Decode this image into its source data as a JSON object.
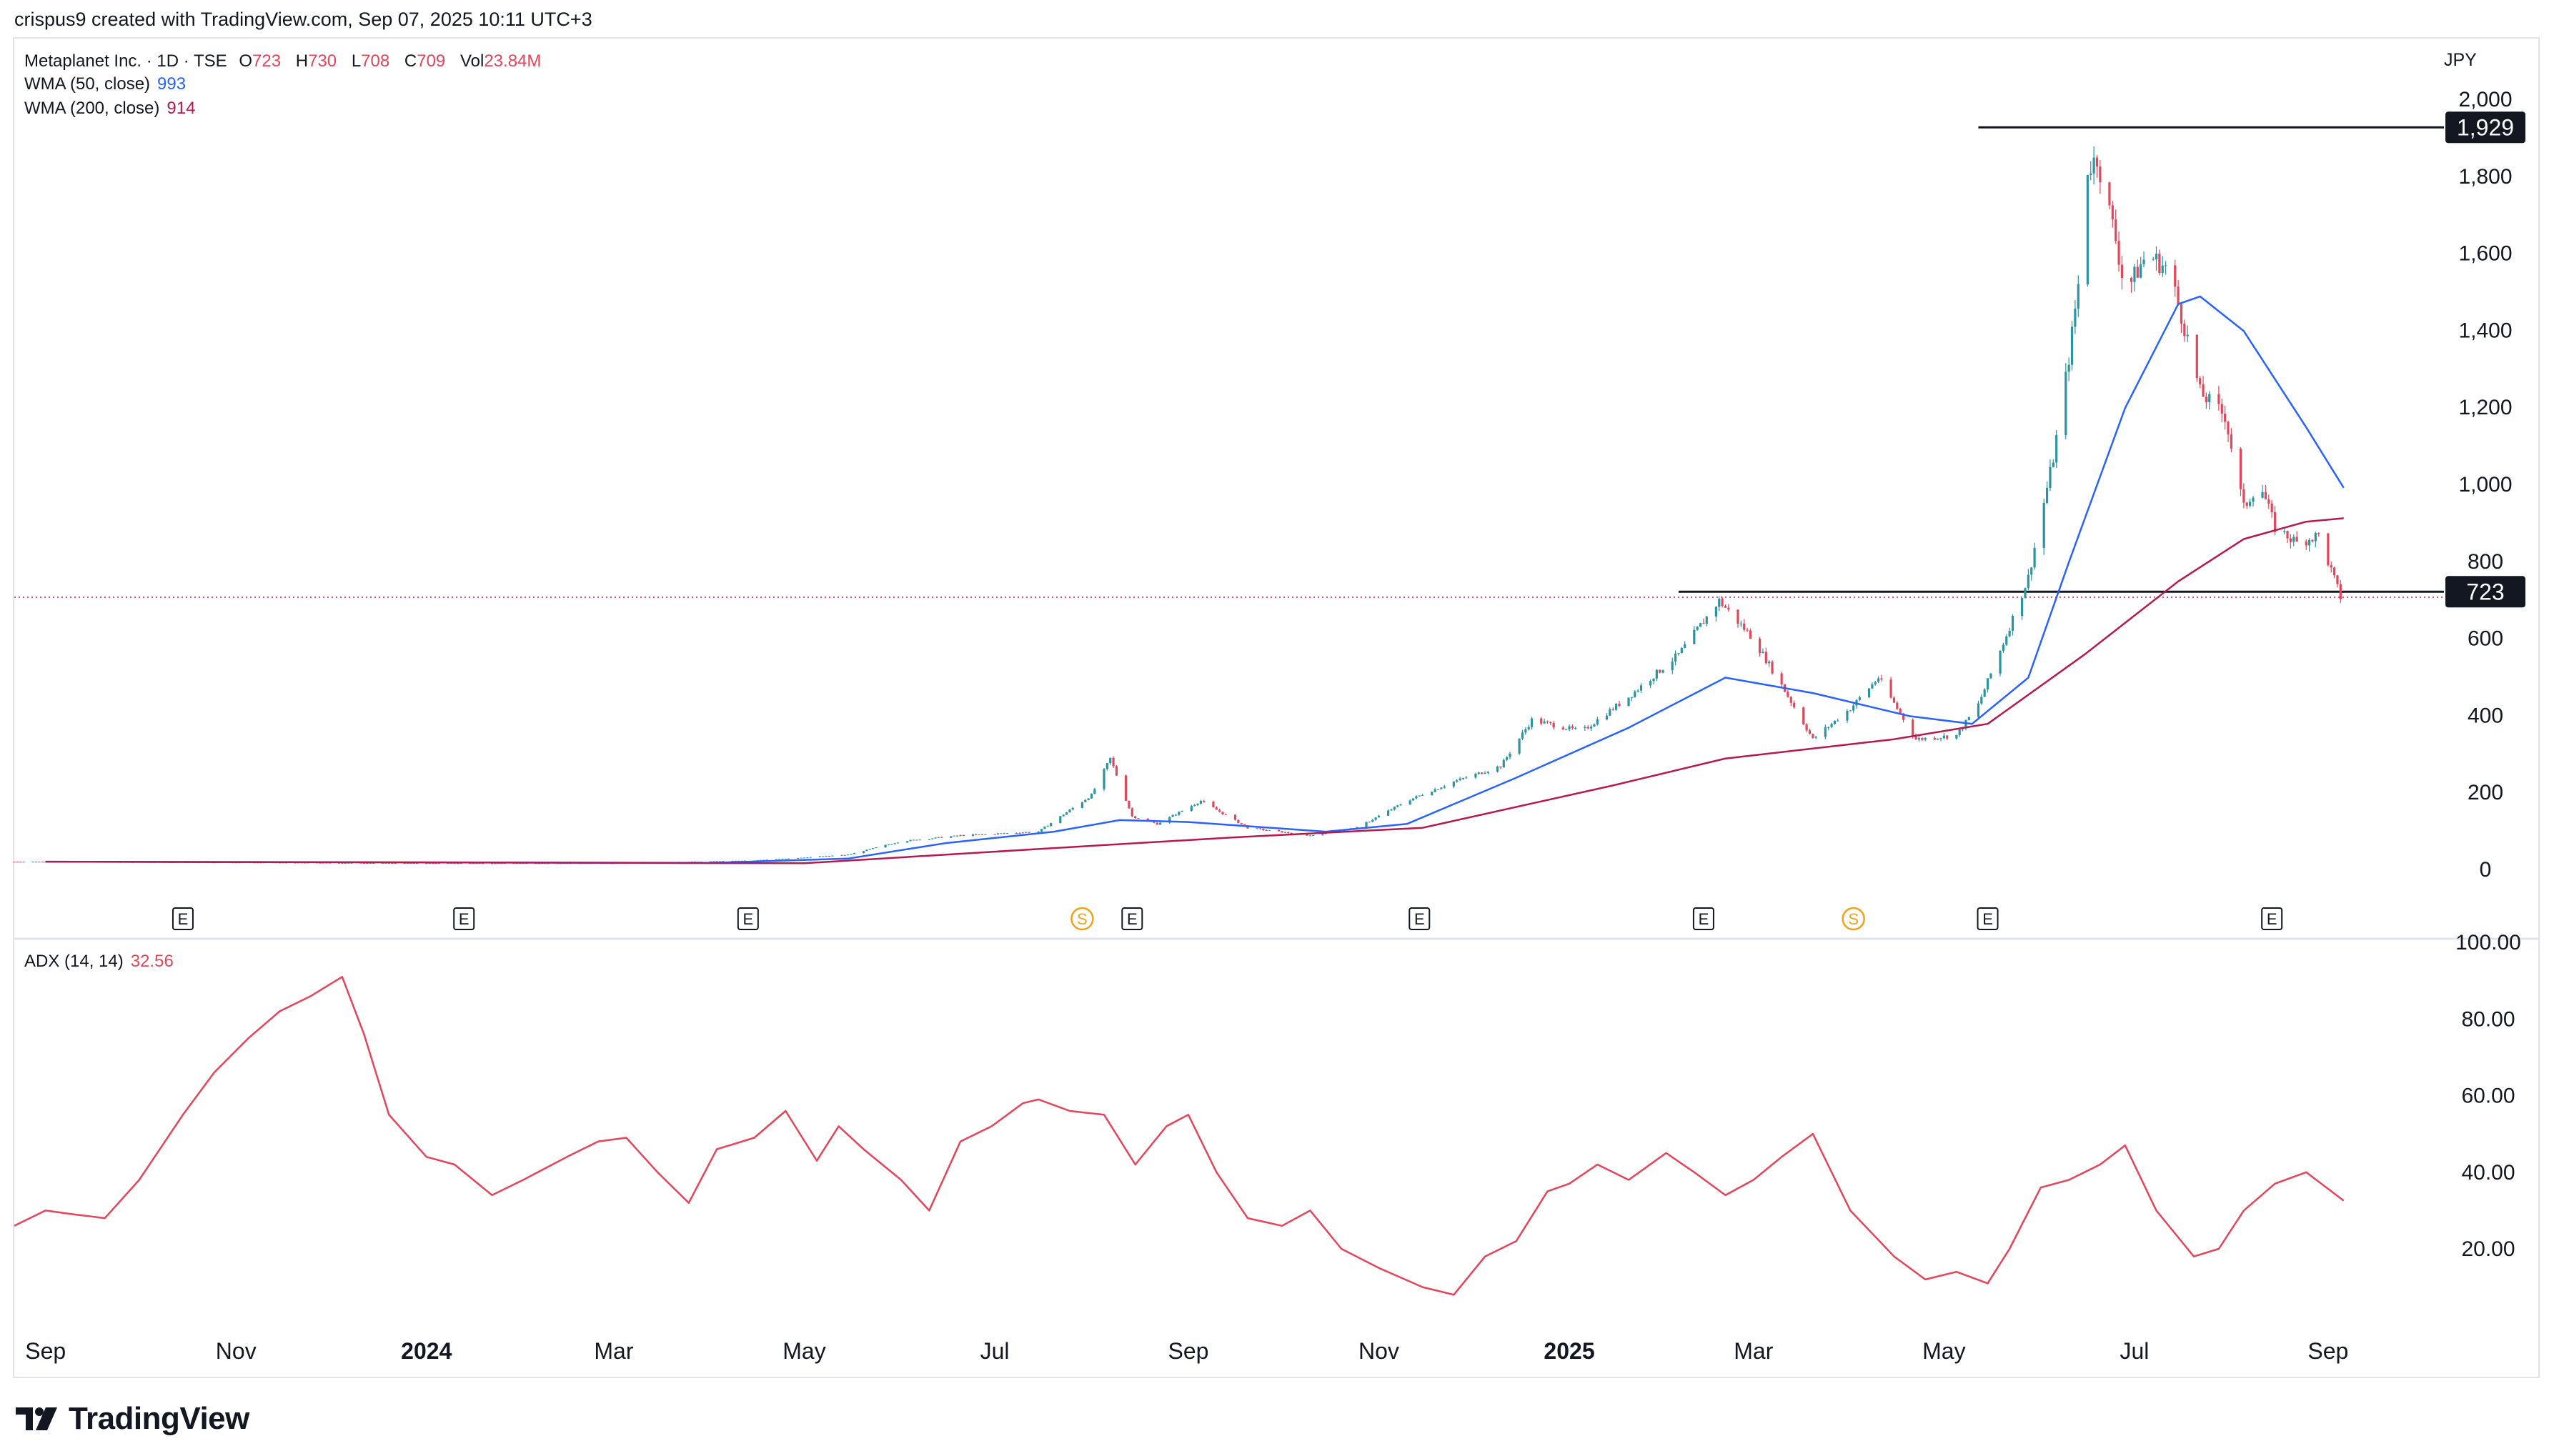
{
  "header": {
    "credit": "crispus9 created with TradingView.com, Sep 07, 2025 10:11 UTC+3"
  },
  "legend": {
    "symbol": "Metaplanet Inc. · 1D · TSE",
    "o_label": "O",
    "o_value": "723",
    "h_label": "H",
    "h_value": "730",
    "l_label": "L",
    "l_value": "708",
    "c_label": "C",
    "c_value": "709",
    "vol_label": "Vol",
    "vol_value": "23.84M",
    "wma50_label": "WMA (50, close)",
    "wma50_value": "993",
    "wma200_label": "WMA (200, close)",
    "wma200_value": "914",
    "adx_label": "ADX (14, 14)",
    "adx_value": "32.56"
  },
  "currency": "JPY",
  "footer": {
    "brand": "TradingView"
  },
  "colors": {
    "up": "#2a95a1",
    "down": "#e5455a",
    "wma50": "#2962ff",
    "wma200": "#b5194f",
    "adx": "#e5455a",
    "grid": "#eef0f4",
    "axis_text": "#131722"
  },
  "chart_data": [
    {
      "type": "candlestick",
      "title": "Metaplanet Inc. · 1D · TSE",
      "y_axis": {
        "unit": "JPY",
        "ticks": [
          0,
          200,
          400,
          600,
          800,
          1000,
          1200,
          1400,
          1600,
          1800,
          2000
        ],
        "ylim": [
          -30,
          2060
        ]
      },
      "x_axis": {
        "ticks": [
          "Sep",
          "Nov",
          "2024",
          "Mar",
          "May",
          "Jul",
          "Sep",
          "Nov",
          "2025",
          "Mar",
          "May",
          "Jul",
          "Sep"
        ],
        "bold_ticks": [
          "2024",
          "2025"
        ],
        "range": [
          "2023-08-22",
          "2025-10-31"
        ]
      },
      "series": [
        {
          "name": "price",
          "points": [
            {
              "date": "2023-09-01",
              "close": 22
            },
            {
              "date": "2023-11-01",
              "close": 20
            },
            {
              "date": "2024-01-01",
              "close": 18
            },
            {
              "date": "2024-03-01",
              "close": 18
            },
            {
              "date": "2024-04-15",
              "close": 25
            },
            {
              "date": "2024-05-15",
              "close": 40
            },
            {
              "date": "2024-06-01",
              "close": 75
            },
            {
              "date": "2024-06-20",
              "close": 90
            },
            {
              "date": "2024-07-15",
              "close": 100
            },
            {
              "date": "2024-08-01",
              "close": 195
            },
            {
              "date": "2024-08-07",
              "close": 290
            },
            {
              "date": "2024-08-14",
              "close": 140
            },
            {
              "date": "2024-08-22",
              "close": 120
            },
            {
              "date": "2024-09-05",
              "close": 180
            },
            {
              "date": "2024-09-20",
              "close": 110
            },
            {
              "date": "2024-10-10",
              "close": 90
            },
            {
              "date": "2024-10-25",
              "close": 110
            },
            {
              "date": "2024-11-10",
              "close": 180
            },
            {
              "date": "2024-11-25",
              "close": 230
            },
            {
              "date": "2024-12-10",
              "close": 270
            },
            {
              "date": "2024-12-20",
              "close": 390
            },
            {
              "date": "2025-01-05",
              "close": 360
            },
            {
              "date": "2025-01-20",
              "close": 450
            },
            {
              "date": "2025-02-05",
              "close": 560
            },
            {
              "date": "2025-02-18",
              "close": 700
            },
            {
              "date": "2025-03-01",
              "close": 600
            },
            {
              "date": "2025-03-10",
              "close": 480
            },
            {
              "date": "2025-03-20",
              "close": 340
            },
            {
              "date": "2025-04-01",
              "close": 420
            },
            {
              "date": "2025-04-10",
              "close": 500
            },
            {
              "date": "2025-04-22",
              "close": 340
            },
            {
              "date": "2025-05-05",
              "close": 350
            },
            {
              "date": "2025-05-12",
              "close": 430
            },
            {
              "date": "2025-05-20",
              "close": 590
            },
            {
              "date": "2025-05-28",
              "close": 760
            },
            {
              "date": "2025-06-05",
              "close": 1070
            },
            {
              "date": "2025-06-10",
              "close": 1330
            },
            {
              "date": "2025-06-13",
              "close": 1520
            },
            {
              "date": "2025-06-16",
              "close": 1820
            },
            {
              "date": "2025-06-19",
              "close": 1850
            },
            {
              "date": "2025-06-25",
              "close": 1640
            },
            {
              "date": "2025-06-28",
              "close": 1500
            },
            {
              "date": "2025-07-05",
              "close": 1600
            },
            {
              "date": "2025-07-12",
              "close": 1560
            },
            {
              "date": "2025-07-18",
              "close": 1380
            },
            {
              "date": "2025-07-22",
              "close": 1240
            },
            {
              "date": "2025-07-30",
              "close": 1180
            },
            {
              "date": "2025-08-05",
              "close": 940
            },
            {
              "date": "2025-08-10",
              "close": 1010
            },
            {
              "date": "2025-08-15",
              "close": 890
            },
            {
              "date": "2025-08-22",
              "close": 850
            },
            {
              "date": "2025-08-29",
              "close": 870
            },
            {
              "date": "2025-09-05",
              "close": 709
            }
          ]
        },
        {
          "name": "WMA (50, close)",
          "points": [
            {
              "date": "2023-09-01",
              "value": 22
            },
            {
              "date": "2024-04-01",
              "value": 19
            },
            {
              "date": "2024-05-15",
              "value": 30
            },
            {
              "date": "2024-06-15",
              "value": 70
            },
            {
              "date": "2024-07-20",
              "value": 100
            },
            {
              "date": "2024-08-10",
              "value": 130
            },
            {
              "date": "2024-09-01",
              "value": 125
            },
            {
              "date": "2024-10-15",
              "value": 100
            },
            {
              "date": "2024-11-10",
              "value": 120
            },
            {
              "date": "2024-12-15",
              "value": 240
            },
            {
              "date": "2025-01-20",
              "value": 370
            },
            {
              "date": "2025-02-20",
              "value": 500
            },
            {
              "date": "2025-03-20",
              "value": 460
            },
            {
              "date": "2025-04-20",
              "value": 400
            },
            {
              "date": "2025-05-10",
              "value": 380
            },
            {
              "date": "2025-05-28",
              "value": 500
            },
            {
              "date": "2025-06-10",
              "value": 800
            },
            {
              "date": "2025-06-28",
              "value": 1200
            },
            {
              "date": "2025-07-15",
              "value": 1470
            },
            {
              "date": "2025-07-22",
              "value": 1490
            },
            {
              "date": "2025-08-05",
              "value": 1400
            },
            {
              "date": "2025-08-25",
              "value": 1150
            },
            {
              "date": "2025-09-06",
              "value": 993
            }
          ]
        },
        {
          "name": "WMA (200, close)",
          "points": [
            {
              "date": "2023-09-01",
              "value": 22
            },
            {
              "date": "2024-05-01",
              "value": 18
            },
            {
              "date": "2024-07-15",
              "value": 55
            },
            {
              "date": "2024-09-15",
              "value": 85
            },
            {
              "date": "2024-11-15",
              "value": 110
            },
            {
              "date": "2025-01-15",
              "value": 220
            },
            {
              "date": "2025-02-20",
              "value": 290
            },
            {
              "date": "2025-04-15",
              "value": 340
            },
            {
              "date": "2025-05-15",
              "value": 380
            },
            {
              "date": "2025-06-15",
              "value": 560
            },
            {
              "date": "2025-07-15",
              "value": 750
            },
            {
              "date": "2025-08-05",
              "value": 860
            },
            {
              "date": "2025-08-25",
              "value": 905
            },
            {
              "date": "2025-09-06",
              "value": 914
            }
          ]
        }
      ],
      "horizontal_lines": [
        {
          "value": 1929,
          "label": "1,929",
          "from": "2025-05-12"
        },
        {
          "value": 723,
          "label": "723",
          "from": "2025-02-05"
        }
      ],
      "current_price_line": 709,
      "earnings_markers": [
        {
          "date": "2023-10-15",
          "label": "E"
        },
        {
          "date": "2024-01-13",
          "label": "E"
        },
        {
          "date": "2024-04-13",
          "label": "E"
        },
        {
          "date": "2024-07-29",
          "label": "S"
        },
        {
          "date": "2024-08-14",
          "label": "E"
        },
        {
          "date": "2024-11-14",
          "label": "E"
        },
        {
          "date": "2025-02-13",
          "label": "E"
        },
        {
          "date": "2025-04-02",
          "label": "S"
        },
        {
          "date": "2025-05-15",
          "label": "E"
        },
        {
          "date": "2025-08-14",
          "label": "E"
        }
      ]
    },
    {
      "type": "line",
      "title": "ADX (14, 14)",
      "y_axis": {
        "ticks": [
          "20.00",
          "40.00",
          "60.00",
          "80.00",
          "100.00"
        ],
        "ylim": [
          0,
          102
        ]
      },
      "series": [
        {
          "name": "ADX",
          "points": [
            {
              "date": "2023-08-22",
              "value": 26
            },
            {
              "date": "2023-09-01",
              "value": 30
            },
            {
              "date": "2023-09-10",
              "value": 29
            },
            {
              "date": "2023-09-20",
              "value": 28
            },
            {
              "date": "2023-10-01",
              "value": 38
            },
            {
              "date": "2023-10-15",
              "value": 55
            },
            {
              "date": "2023-10-25",
              "value": 66
            },
            {
              "date": "2023-11-05",
              "value": 75
            },
            {
              "date": "2023-11-15",
              "value": 82
            },
            {
              "date": "2023-11-25",
              "value": 86
            },
            {
              "date": "2023-12-05",
              "value": 91
            },
            {
              "date": "2023-12-12",
              "value": 76
            },
            {
              "date": "2023-12-20",
              "value": 55
            },
            {
              "date": "2024-01-01",
              "value": 44
            },
            {
              "date": "2024-01-10",
              "value": 42
            },
            {
              "date": "2024-01-22",
              "value": 34
            },
            {
              "date": "2024-02-01",
              "value": 38
            },
            {
              "date": "2024-02-15",
              "value": 44
            },
            {
              "date": "2024-02-25",
              "value": 48
            },
            {
              "date": "2024-03-05",
              "value": 49
            },
            {
              "date": "2024-03-15",
              "value": 40
            },
            {
              "date": "2024-03-25",
              "value": 32
            },
            {
              "date": "2024-04-03",
              "value": 46
            },
            {
              "date": "2024-04-15",
              "value": 49
            },
            {
              "date": "2024-04-25",
              "value": 56
            },
            {
              "date": "2024-05-05",
              "value": 43
            },
            {
              "date": "2024-05-12",
              "value": 52
            },
            {
              "date": "2024-05-20",
              "value": 46
            },
            {
              "date": "2024-06-01",
              "value": 38
            },
            {
              "date": "2024-06-10",
              "value": 30
            },
            {
              "date": "2024-06-20",
              "value": 48
            },
            {
              "date": "2024-06-30",
              "value": 52
            },
            {
              "date": "2024-07-10",
              "value": 58
            },
            {
              "date": "2024-07-15",
              "value": 59
            },
            {
              "date": "2024-07-25",
              "value": 56
            },
            {
              "date": "2024-08-05",
              "value": 55
            },
            {
              "date": "2024-08-15",
              "value": 42
            },
            {
              "date": "2024-08-25",
              "value": 52
            },
            {
              "date": "2024-09-01",
              "value": 55
            },
            {
              "date": "2024-09-10",
              "value": 40
            },
            {
              "date": "2024-09-20",
              "value": 28
            },
            {
              "date": "2024-10-01",
              "value": 26
            },
            {
              "date": "2024-10-10",
              "value": 30
            },
            {
              "date": "2024-10-20",
              "value": 20
            },
            {
              "date": "2024-11-01",
              "value": 15
            },
            {
              "date": "2024-11-15",
              "value": 10
            },
            {
              "date": "2024-11-25",
              "value": 8
            },
            {
              "date": "2024-12-05",
              "value": 18
            },
            {
              "date": "2024-12-15",
              "value": 22
            },
            {
              "date": "2024-12-25",
              "value": 35
            },
            {
              "date": "2025-01-01",
              "value": 37
            },
            {
              "date": "2025-01-10",
              "value": 42
            },
            {
              "date": "2025-01-20",
              "value": 38
            },
            {
              "date": "2025-02-01",
              "value": 45
            },
            {
              "date": "2025-02-10",
              "value": 40
            },
            {
              "date": "2025-02-20",
              "value": 34
            },
            {
              "date": "2025-03-01",
              "value": 38
            },
            {
              "date": "2025-03-10",
              "value": 44
            },
            {
              "date": "2025-03-20",
              "value": 50
            },
            {
              "date": "2025-04-01",
              "value": 30
            },
            {
              "date": "2025-04-15",
              "value": 18
            },
            {
              "date": "2025-04-25",
              "value": 12
            },
            {
              "date": "2025-05-05",
              "value": 14
            },
            {
              "date": "2025-05-15",
              "value": 11
            },
            {
              "date": "2025-05-22",
              "value": 20
            },
            {
              "date": "2025-06-01",
              "value": 36
            },
            {
              "date": "2025-06-10",
              "value": 38
            },
            {
              "date": "2025-06-20",
              "value": 42
            },
            {
              "date": "2025-06-28",
              "value": 47
            },
            {
              "date": "2025-07-08",
              "value": 30
            },
            {
              "date": "2025-07-20",
              "value": 18
            },
            {
              "date": "2025-07-28",
              "value": 20
            },
            {
              "date": "2025-08-05",
              "value": 30
            },
            {
              "date": "2025-08-15",
              "value": 37
            },
            {
              "date": "2025-08-25",
              "value": 40
            },
            {
              "date": "2025-09-06",
              "value": 32.56
            }
          ]
        }
      ]
    }
  ]
}
